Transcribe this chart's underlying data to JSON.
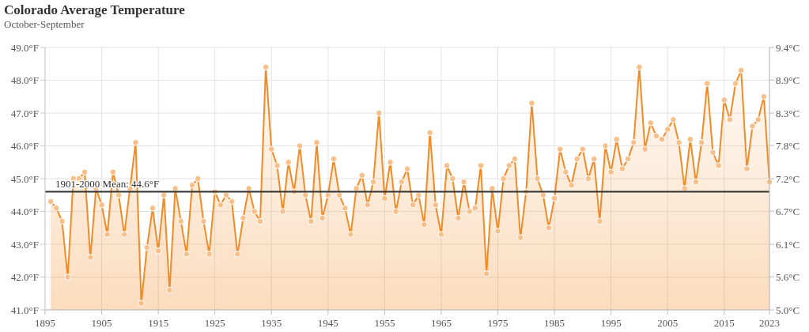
{
  "chart_data": {
    "type": "area",
    "title": "Colorado Average Temperature",
    "subtitle": "October-September",
    "x": [
      1896,
      1897,
      1898,
      1899,
      1900,
      1901,
      1902,
      1903,
      1904,
      1905,
      1906,
      1907,
      1908,
      1909,
      1910,
      1911,
      1912,
      1913,
      1914,
      1915,
      1916,
      1917,
      1918,
      1919,
      1920,
      1921,
      1922,
      1923,
      1924,
      1925,
      1926,
      1927,
      1928,
      1929,
      1930,
      1931,
      1932,
      1933,
      1934,
      1935,
      1936,
      1937,
      1938,
      1939,
      1940,
      1941,
      1942,
      1943,
      1944,
      1945,
      1946,
      1947,
      1948,
      1949,
      1950,
      1951,
      1952,
      1953,
      1954,
      1955,
      1956,
      1957,
      1958,
      1959,
      1960,
      1961,
      1962,
      1963,
      1964,
      1965,
      1966,
      1967,
      1968,
      1969,
      1970,
      1971,
      1972,
      1973,
      1974,
      1975,
      1976,
      1977,
      1978,
      1979,
      1980,
      1981,
      1982,
      1983,
      1984,
      1985,
      1986,
      1987,
      1988,
      1989,
      1990,
      1991,
      1992,
      1993,
      1994,
      1995,
      1996,
      1997,
      1998,
      1999,
      2000,
      2001,
      2002,
      2003,
      2004,
      2005,
      2006,
      2007,
      2008,
      2009,
      2010,
      2011,
      2012,
      2013,
      2014,
      2015,
      2016,
      2017,
      2018,
      2019,
      2020,
      2021,
      2022,
      2023
    ],
    "series": [
      {
        "color": "#f28b26",
        "values": [
          44.3,
          44.1,
          43.7,
          42.0,
          45.0,
          45.0,
          45.2,
          42.6,
          44.7,
          44.2,
          43.3,
          45.2,
          44.5,
          43.3,
          44.7,
          46.1,
          41.2,
          42.9,
          44.1,
          42.8,
          44.5,
          41.6,
          44.7,
          43.7,
          42.7,
          44.8,
          45.0,
          43.7,
          42.7,
          44.6,
          44.2,
          44.5,
          44.3,
          42.7,
          43.8,
          44.7,
          44.0,
          43.7,
          48.4,
          45.9,
          45.4,
          44.0,
          45.5,
          44.6,
          46.0,
          44.5,
          43.7,
          46.1,
          43.8,
          44.5,
          45.6,
          44.5,
          44.1,
          43.3,
          44.7,
          45.1,
          44.2,
          44.9,
          47.0,
          44.4,
          45.5,
          44.0,
          44.9,
          45.3,
          44.2,
          44.5,
          43.6,
          46.4,
          44.2,
          43.3,
          45.4,
          45.0,
          43.8,
          44.9,
          44.0,
          44.1,
          45.4,
          42.1,
          44.7,
          43.4,
          45.0,
          45.4,
          45.6,
          43.2,
          44.6,
          47.3,
          45.0,
          44.5,
          43.5,
          44.4,
          45.9,
          45.2,
          44.8,
          45.6,
          45.9,
          45.0,
          45.6,
          43.7,
          46.0,
          45.2,
          46.2,
          45.3,
          45.6,
          46.1,
          48.4,
          45.9,
          46.7,
          46.3,
          46.2,
          46.5,
          46.8,
          46.1,
          44.7,
          46.2,
          44.9,
          46.1,
          47.9,
          45.8,
          45.4,
          47.4,
          46.8,
          47.9,
          48.3,
          45.3,
          46.6,
          46.8,
          47.5,
          44.9
        ]
      }
    ],
    "xlim": [
      1895,
      2023
    ],
    "xticks": [
      1895,
      1905,
      1915,
      1925,
      1935,
      1945,
      1955,
      1965,
      1975,
      1985,
      1995,
      2005,
      2015,
      2023
    ],
    "ylim": [
      41,
      49
    ],
    "yticks": [
      {
        "value": 41,
        "label": "41.0°F"
      },
      {
        "value": 42,
        "label": "42.0°F"
      },
      {
        "value": 43,
        "label": "43.0°F"
      },
      {
        "value": 44,
        "label": "44.0°F"
      },
      {
        "value": 45,
        "label": "45.0°F"
      },
      {
        "value": 46,
        "label": "46.0°F"
      },
      {
        "value": 47,
        "label": "47.0°F"
      },
      {
        "value": 48,
        "label": "48.0°F"
      },
      {
        "value": 49,
        "label": "49.0°F"
      }
    ],
    "y2lim": [
      5.0,
      9.44
    ],
    "y2ticks": [
      {
        "value": 5.0,
        "label": "5.0°C"
      },
      {
        "value": 5.56,
        "label": "5.6°C"
      },
      {
        "value": 6.11,
        "label": "6.1°C"
      },
      {
        "value": 6.67,
        "label": "6.7°C"
      },
      {
        "value": 7.22,
        "label": "7.2°C"
      },
      {
        "value": 7.78,
        "label": "7.8°C"
      },
      {
        "value": 8.33,
        "label": "8.3°C"
      },
      {
        "value": 8.89,
        "label": "8.9°C"
      },
      {
        "value": 9.44,
        "label": "9.4°C"
      }
    ],
    "grid": true,
    "marker": "circle",
    "ref_lines": [
      {
        "axis": "y",
        "value": 44.6,
        "label": "1901-2000 Mean: 44.6°F",
        "color": "#333333"
      }
    ]
  }
}
